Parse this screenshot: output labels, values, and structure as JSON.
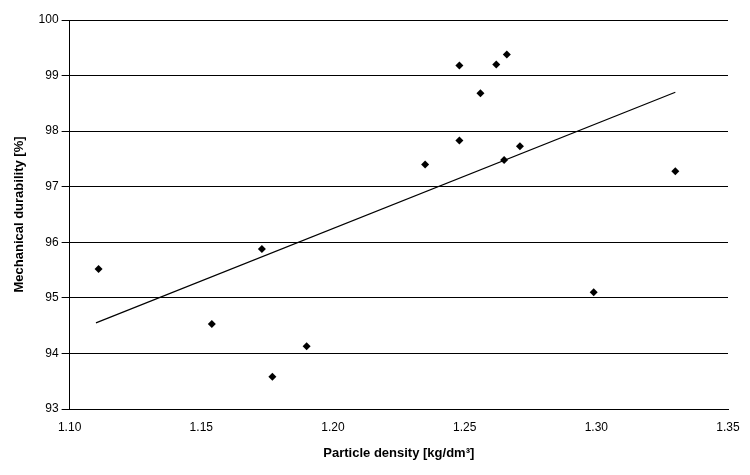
{
  "chart_data": {
    "type": "scatter",
    "x_label": "Particle density [kg/dm³]",
    "y_label": "Mechanical durability [%]",
    "xlim": [
      1.1,
      1.35
    ],
    "xticks": [
      {
        "value": 1.1,
        "label": "1.10"
      },
      {
        "value": 1.15,
        "label": "1.15"
      },
      {
        "value": 1.2,
        "label": "1.20"
      },
      {
        "value": 1.25,
        "label": "1.25"
      },
      {
        "value": 1.3,
        "label": "1.30"
      },
      {
        "value": 1.35,
        "label": "1.35"
      }
    ],
    "ylim": [
      93,
      100
    ],
    "yticks": [
      93,
      94,
      95,
      96,
      97,
      98,
      99,
      100
    ],
    "grid": true,
    "series": [
      {
        "type": "scatter",
        "color": "#000000",
        "marker": "diamond",
        "x": [
          1.111,
          1.154,
          1.173,
          1.177,
          1.19,
          1.235,
          1.248,
          1.248,
          1.256,
          1.262,
          1.266,
          1.265,
          1.271,
          1.299,
          1.33
        ],
        "values": [
          95.52,
          94.53,
          95.88,
          93.58,
          94.13,
          97.4,
          99.18,
          97.83,
          98.68,
          99.2,
          99.38,
          97.48,
          97.73,
          95.1,
          97.28
        ]
      },
      {
        "type": "line",
        "color": "#000000",
        "line_style": "solid",
        "x": [
          1.11,
          1.33
        ],
        "values": [
          94.55,
          98.7
        ]
      }
    ]
  }
}
